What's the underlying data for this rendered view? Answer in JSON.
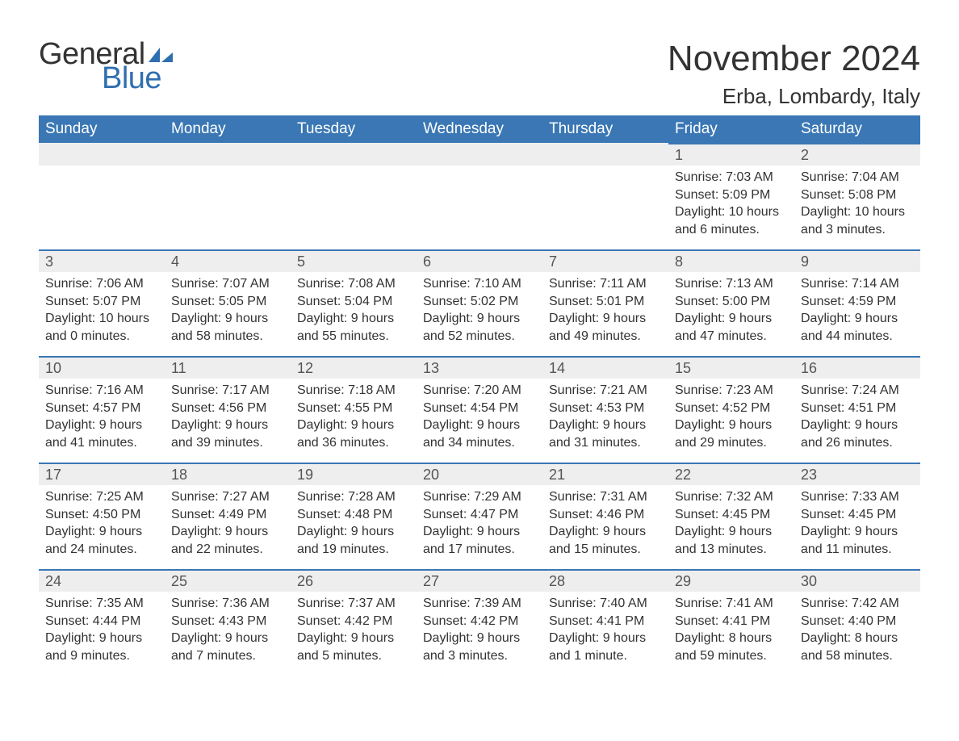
{
  "logo": {
    "word1": "General",
    "word2": "Blue"
  },
  "title": "November 2024",
  "location": "Erba, Lombardy, Italy",
  "colors": {
    "header_bg": "#3a77b4",
    "header_text": "#ffffff",
    "daynum_bg": "#eeeeee",
    "daynum_border": "#3a77b4",
    "text": "#333333",
    "logo_blue": "#2f6fb0"
  },
  "typography": {
    "title_fontsize": 44,
    "location_fontsize": 26,
    "weekday_fontsize": 19,
    "daynum_fontsize": 18,
    "body_fontsize": 16,
    "logo_fontsize": 38
  },
  "weekdays": [
    "Sunday",
    "Monday",
    "Tuesday",
    "Wednesday",
    "Thursday",
    "Friday",
    "Saturday"
  ],
  "weeks": [
    [
      {
        "empty": true
      },
      {
        "empty": true
      },
      {
        "empty": true
      },
      {
        "empty": true
      },
      {
        "empty": true
      },
      {
        "day": "1",
        "sunrise": "Sunrise: 7:03 AM",
        "sunset": "Sunset: 5:09 PM",
        "daylight": "Daylight: 10 hours and 6 minutes."
      },
      {
        "day": "2",
        "sunrise": "Sunrise: 7:04 AM",
        "sunset": "Sunset: 5:08 PM",
        "daylight": "Daylight: 10 hours and 3 minutes."
      }
    ],
    [
      {
        "day": "3",
        "sunrise": "Sunrise: 7:06 AM",
        "sunset": "Sunset: 5:07 PM",
        "daylight": "Daylight: 10 hours and 0 minutes."
      },
      {
        "day": "4",
        "sunrise": "Sunrise: 7:07 AM",
        "sunset": "Sunset: 5:05 PM",
        "daylight": "Daylight: 9 hours and 58 minutes."
      },
      {
        "day": "5",
        "sunrise": "Sunrise: 7:08 AM",
        "sunset": "Sunset: 5:04 PM",
        "daylight": "Daylight: 9 hours and 55 minutes."
      },
      {
        "day": "6",
        "sunrise": "Sunrise: 7:10 AM",
        "sunset": "Sunset: 5:02 PM",
        "daylight": "Daylight: 9 hours and 52 minutes."
      },
      {
        "day": "7",
        "sunrise": "Sunrise: 7:11 AM",
        "sunset": "Sunset: 5:01 PM",
        "daylight": "Daylight: 9 hours and 49 minutes."
      },
      {
        "day": "8",
        "sunrise": "Sunrise: 7:13 AM",
        "sunset": "Sunset: 5:00 PM",
        "daylight": "Daylight: 9 hours and 47 minutes."
      },
      {
        "day": "9",
        "sunrise": "Sunrise: 7:14 AM",
        "sunset": "Sunset: 4:59 PM",
        "daylight": "Daylight: 9 hours and 44 minutes."
      }
    ],
    [
      {
        "day": "10",
        "sunrise": "Sunrise: 7:16 AM",
        "sunset": "Sunset: 4:57 PM",
        "daylight": "Daylight: 9 hours and 41 minutes."
      },
      {
        "day": "11",
        "sunrise": "Sunrise: 7:17 AM",
        "sunset": "Sunset: 4:56 PM",
        "daylight": "Daylight: 9 hours and 39 minutes."
      },
      {
        "day": "12",
        "sunrise": "Sunrise: 7:18 AM",
        "sunset": "Sunset: 4:55 PM",
        "daylight": "Daylight: 9 hours and 36 minutes."
      },
      {
        "day": "13",
        "sunrise": "Sunrise: 7:20 AM",
        "sunset": "Sunset: 4:54 PM",
        "daylight": "Daylight: 9 hours and 34 minutes."
      },
      {
        "day": "14",
        "sunrise": "Sunrise: 7:21 AM",
        "sunset": "Sunset: 4:53 PM",
        "daylight": "Daylight: 9 hours and 31 minutes."
      },
      {
        "day": "15",
        "sunrise": "Sunrise: 7:23 AM",
        "sunset": "Sunset: 4:52 PM",
        "daylight": "Daylight: 9 hours and 29 minutes."
      },
      {
        "day": "16",
        "sunrise": "Sunrise: 7:24 AM",
        "sunset": "Sunset: 4:51 PM",
        "daylight": "Daylight: 9 hours and 26 minutes."
      }
    ],
    [
      {
        "day": "17",
        "sunrise": "Sunrise: 7:25 AM",
        "sunset": "Sunset: 4:50 PM",
        "daylight": "Daylight: 9 hours and 24 minutes."
      },
      {
        "day": "18",
        "sunrise": "Sunrise: 7:27 AM",
        "sunset": "Sunset: 4:49 PM",
        "daylight": "Daylight: 9 hours and 22 minutes."
      },
      {
        "day": "19",
        "sunrise": "Sunrise: 7:28 AM",
        "sunset": "Sunset: 4:48 PM",
        "daylight": "Daylight: 9 hours and 19 minutes."
      },
      {
        "day": "20",
        "sunrise": "Sunrise: 7:29 AM",
        "sunset": "Sunset: 4:47 PM",
        "daylight": "Daylight: 9 hours and 17 minutes."
      },
      {
        "day": "21",
        "sunrise": "Sunrise: 7:31 AM",
        "sunset": "Sunset: 4:46 PM",
        "daylight": "Daylight: 9 hours and 15 minutes."
      },
      {
        "day": "22",
        "sunrise": "Sunrise: 7:32 AM",
        "sunset": "Sunset: 4:45 PM",
        "daylight": "Daylight: 9 hours and 13 minutes."
      },
      {
        "day": "23",
        "sunrise": "Sunrise: 7:33 AM",
        "sunset": "Sunset: 4:45 PM",
        "daylight": "Daylight: 9 hours and 11 minutes."
      }
    ],
    [
      {
        "day": "24",
        "sunrise": "Sunrise: 7:35 AM",
        "sunset": "Sunset: 4:44 PM",
        "daylight": "Daylight: 9 hours and 9 minutes."
      },
      {
        "day": "25",
        "sunrise": "Sunrise: 7:36 AM",
        "sunset": "Sunset: 4:43 PM",
        "daylight": "Daylight: 9 hours and 7 minutes."
      },
      {
        "day": "26",
        "sunrise": "Sunrise: 7:37 AM",
        "sunset": "Sunset: 4:42 PM",
        "daylight": "Daylight: 9 hours and 5 minutes."
      },
      {
        "day": "27",
        "sunrise": "Sunrise: 7:39 AM",
        "sunset": "Sunset: 4:42 PM",
        "daylight": "Daylight: 9 hours and 3 minutes."
      },
      {
        "day": "28",
        "sunrise": "Sunrise: 7:40 AM",
        "sunset": "Sunset: 4:41 PM",
        "daylight": "Daylight: 9 hours and 1 minute."
      },
      {
        "day": "29",
        "sunrise": "Sunrise: 7:41 AM",
        "sunset": "Sunset: 4:41 PM",
        "daylight": "Daylight: 8 hours and 59 minutes."
      },
      {
        "day": "30",
        "sunrise": "Sunrise: 7:42 AM",
        "sunset": "Sunset: 4:40 PM",
        "daylight": "Daylight: 8 hours and 58 minutes."
      }
    ]
  ]
}
